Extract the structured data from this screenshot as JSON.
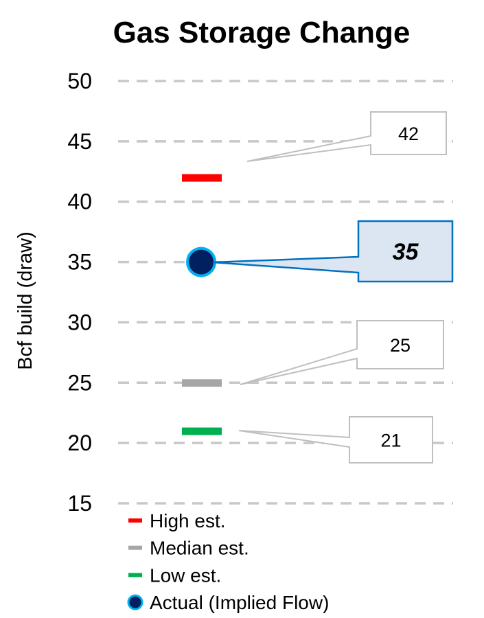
{
  "chart_data": {
    "type": "scatter",
    "title": "Gas Storage Change",
    "ylabel": "Bcf build (draw)",
    "ylim": [
      15,
      50
    ],
    "yticks": [
      "15",
      "20",
      "25",
      "30",
      "35",
      "40",
      "45",
      "50"
    ],
    "grid": true,
    "legend_position": "bottom-left",
    "series": [
      {
        "name": "High est.",
        "marker": "dash",
        "color": "#ff0000",
        "value": 42,
        "label": "42"
      },
      {
        "name": "Median est.",
        "marker": "dash",
        "color": "#a6a6a6",
        "value": 25,
        "label": "25"
      },
      {
        "name": "Low est.",
        "marker": "dash",
        "color": "#00b050",
        "value": 21,
        "label": "21"
      },
      {
        "name": "Actual (Implied Flow)",
        "marker": "circle",
        "color": "#002060",
        "edge_color": "#00b0f0",
        "value": 35,
        "label": "35",
        "label_emphasis": true
      }
    ]
  }
}
